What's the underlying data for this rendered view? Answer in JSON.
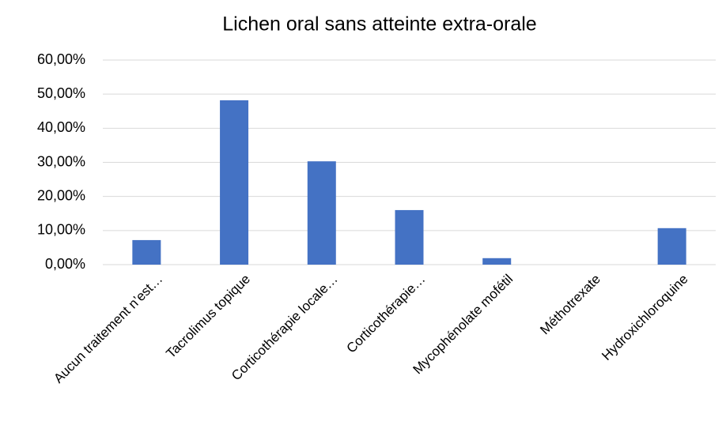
{
  "chart_data": {
    "type": "bar",
    "title": "Lichen oral sans atteinte extra-orale",
    "categories": [
      "Aucun traitement n’est…",
      "Tacrolimus topique",
      "Corticothérapie locale…",
      "Corticothérapie…",
      "Mycophénolate mofétil",
      "Méthotrexate",
      "Hydroxichloroquine"
    ],
    "values": [
      7.2,
      48.2,
      30.3,
      16.0,
      1.9,
      0,
      10.7
    ],
    "color": "#4472c4",
    "ylim": [
      0,
      60
    ],
    "yticks": [
      {
        "value": 0,
        "label": "0,00%"
      },
      {
        "value": 10,
        "label": "10,00%"
      },
      {
        "value": 20,
        "label": "20,00%"
      },
      {
        "value": 30,
        "label": "30,00%"
      },
      {
        "value": 40,
        "label": "40,00%"
      },
      {
        "value": 50,
        "label": "50,00%"
      },
      {
        "value": 60,
        "label": "60,00%"
      }
    ],
    "grid": true
  }
}
